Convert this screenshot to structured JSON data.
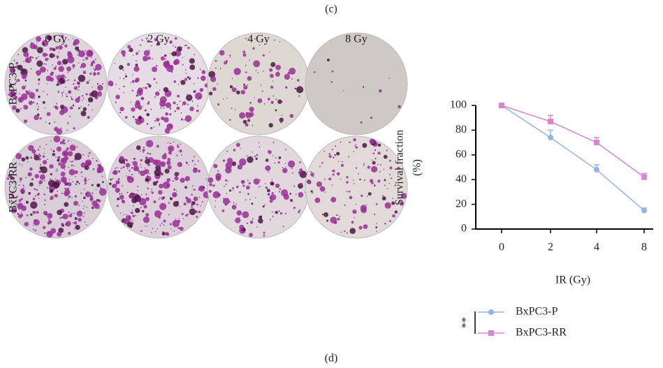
{
  "panel_labels": {
    "top": "(c)",
    "bottom": "(d)"
  },
  "columns": [
    "0 Gy",
    "2 Gy",
    "4 Gy",
    "8 Gy"
  ],
  "rows": [
    "BxPC3-P",
    "BxPC3-RR"
  ],
  "chart_data": {
    "type": "line",
    "y_label_lines": [
      "Survival fraction",
      "(%)"
    ],
    "x_label": "IR (Gy)",
    "categories": [
      "0",
      "2",
      "4",
      "8"
    ],
    "ylim": [
      0,
      100
    ],
    "yticks": [
      0,
      20,
      40,
      60,
      80,
      100
    ],
    "series": [
      {
        "name": "BxPC3-P",
        "color": "#94b4e2",
        "marker": "circle",
        "values": [
          100,
          74,
          48,
          15
        ],
        "errors": [
          0,
          6,
          4,
          2
        ]
      },
      {
        "name": "BxPC3-RR",
        "color": "#d884d2",
        "marker": "square",
        "values": [
          100,
          87,
          70,
          42
        ],
        "errors": [
          0,
          5,
          4,
          3
        ]
      }
    ],
    "significance": "**"
  }
}
